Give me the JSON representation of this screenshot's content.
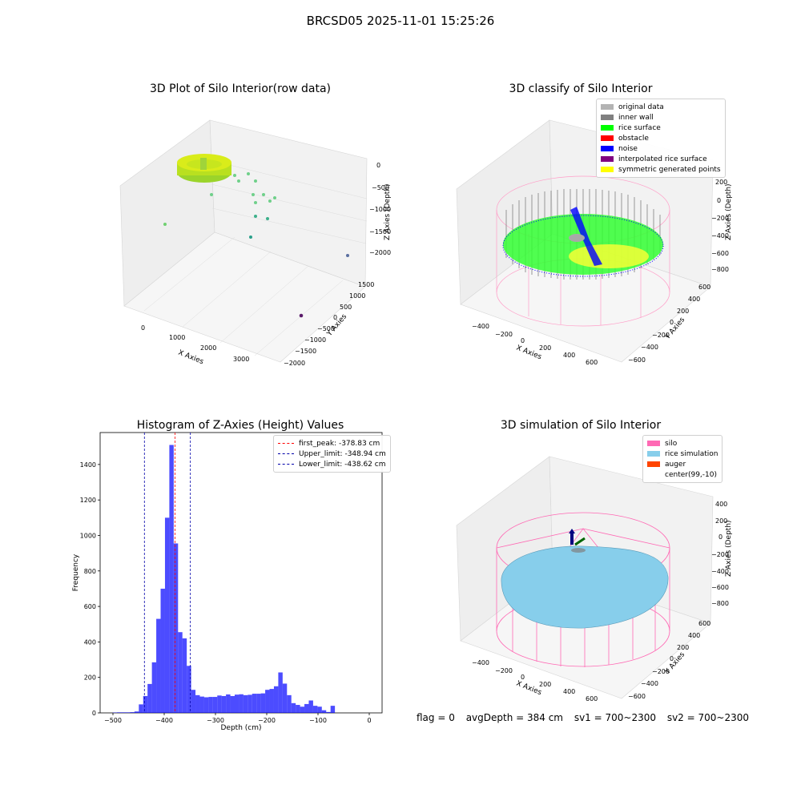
{
  "suptitle": "BRCSD05 2025-11-01 15:25:26",
  "panels": {
    "raw": {
      "title": "3D Plot of Silo Interior(row data)",
      "xlabel": "X Axies",
      "ylabel": "Y Axies",
      "zlabel": "Z Axies (Depth)",
      "xticks": [
        "0",
        "1000",
        "2000",
        "3000"
      ],
      "yticks": [
        "1500",
        "1000",
        "500",
        "0",
        "−500",
        "−1000",
        "−1500",
        "−2000"
      ],
      "zticks": [
        "0",
        "−500",
        "−1000",
        "−1500",
        "−2000"
      ]
    },
    "classify": {
      "title": "3D classify of Silo Interior",
      "xlabel": "X Axies",
      "ylabel": "Y Axies",
      "zlabel": "Z Axies (Depth)",
      "xticks": [
        "−400",
        "−200",
        "0",
        "200",
        "400",
        "600"
      ],
      "yticks": [
        "600",
        "400",
        "200",
        "0",
        "−200",
        "−400",
        "−600"
      ],
      "zticks": [
        "200",
        "0",
        "−200",
        "−400",
        "−600",
        "−800"
      ],
      "legend": [
        {
          "label": "original data",
          "color": "#b3b3b3"
        },
        {
          "label": "inner wall",
          "color": "#808080"
        },
        {
          "label": "rice surface",
          "color": "#00ff00"
        },
        {
          "label": "obstacle",
          "color": "#ff0000"
        },
        {
          "label": "noise",
          "color": "#0000ff"
        },
        {
          "label": "interpolated rice surface",
          "color": "#800080"
        },
        {
          "label": "symmetric generated points",
          "color": "#ffff00"
        }
      ]
    },
    "simulation": {
      "title": "3D simulation of Silo Interior",
      "xlabel": "X Axies",
      "ylabel": "Y Axies",
      "zlabel": "Z Axies (Depth)",
      "xticks": [
        "−400",
        "−200",
        "0",
        "200",
        "400",
        "600"
      ],
      "yticks": [
        "600",
        "400",
        "200",
        "0",
        "−200",
        "−400",
        "−600"
      ],
      "zticks": [
        "400",
        "200",
        "0",
        "−200",
        "−400",
        "−600",
        "−800"
      ],
      "legend": [
        {
          "label": "silo",
          "color": "#ff69b4"
        },
        {
          "label": "rice simulation",
          "color": "#87ceeb"
        },
        {
          "label": "auger",
          "color": "#ff4500"
        },
        {
          "label": "center(99,-10)",
          "color": "#ffffff"
        }
      ]
    }
  },
  "chart_data": {
    "type": "bar",
    "title": "Histogram of Z-Axies (Height) Values",
    "xlabel": "Depth (cm)",
    "ylabel": "Frequency",
    "xlim": [
      -525,
      25
    ],
    "ylim": [
      0,
      1580
    ],
    "xticks": [
      -500,
      -400,
      -300,
      -200,
      -100,
      0
    ],
    "xtick_labels": [
      "−500",
      "−400",
      "−300",
      "−200",
      "−100",
      "0"
    ],
    "yticks": [
      0,
      200,
      400,
      600,
      800,
      1000,
      1200,
      1400
    ],
    "bar_color": "#0000ff",
    "bin_width": 8.5,
    "bins_start": [
      -500.5,
      -492,
      -483.5,
      -475,
      -466.5,
      -458,
      -449.5,
      -441,
      -432.5,
      -424,
      -415.5,
      -407,
      -398.5,
      -390,
      -381.5,
      -373,
      -364.5,
      -356,
      -347.5,
      -339,
      -330.5,
      -322,
      -313.5,
      -305,
      -296.5,
      -288,
      -279.5,
      -271,
      -262.5,
      -254,
      -245.5,
      -237,
      -228.5,
      -220,
      -211.5,
      -203,
      -194.5,
      -186,
      -177.5,
      -169,
      -160.5,
      -152,
      -143.5,
      -135,
      -126.5,
      -118,
      -109.5,
      -101,
      -92.5,
      -84,
      -75.5,
      -67,
      -58.5,
      -50,
      -41.5,
      -33,
      -24.5,
      -16,
      -7.5
    ],
    "counts": [
      2,
      3,
      3,
      3,
      4,
      8,
      48,
      95,
      163,
      285,
      530,
      700,
      1100,
      1510,
      955,
      455,
      420,
      265,
      130,
      100,
      92,
      88,
      90,
      90,
      98,
      95,
      104,
      95,
      103,
      105,
      100,
      102,
      108,
      108,
      110,
      130,
      135,
      150,
      228,
      165,
      100,
      55,
      45,
      35,
      50,
      70,
      40,
      35,
      15,
      5,
      40,
      0,
      0,
      0,
      0,
      0,
      0,
      0,
      0
    ],
    "vlines": [
      {
        "x": -378.83,
        "color": "#ff0000",
        "label": "first_peak: -378.83 cm"
      },
      {
        "x": -348.94,
        "color": "#0000aa",
        "label": "Upper_limit: -348.94 cm"
      },
      {
        "x": -438.62,
        "color": "#0000aa",
        "label": "Lower_limit: -438.62 cm"
      }
    ]
  },
  "status": {
    "flag": "flag = 0",
    "avg_depth": "avgDepth = 384 cm",
    "sv1": "sv1 = 700~2300",
    "sv2": "sv2 = 700~2300"
  }
}
